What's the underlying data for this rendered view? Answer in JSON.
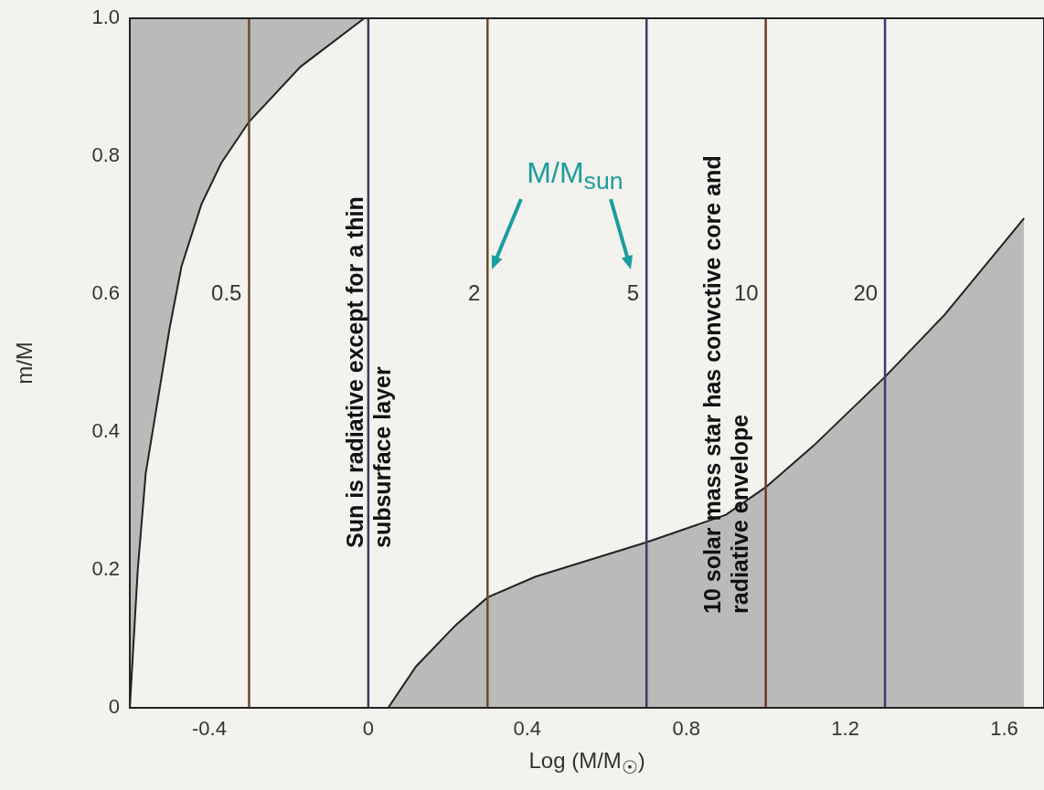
{
  "chart_data": {
    "type": "area",
    "xlabel": "Log (M/M$_{☉}$)",
    "ylabel": "m/M",
    "xlim": [
      -0.6,
      1.7
    ],
    "xticks": [
      -0.4,
      0,
      0.4,
      0.8,
      1.2,
      1.6
    ],
    "ylim": [
      0,
      1.0
    ],
    "yticks": [
      0,
      0.2,
      0.4,
      0.6,
      0.8,
      {
        "value": 1.0,
        "label": "1.0"
      }
    ],
    "grid": false,
    "legend": false,
    "series": [
      {
        "color": "#8c8c8c",
        "x": [
          -0.6,
          -0.6,
          -0.58,
          -0.56,
          -0.5,
          -0.47,
          -0.42,
          -0.37,
          -0.3,
          -0.17,
          -0.01
        ],
        "values": [
          1.0,
          0,
          0.2,
          0.34,
          0.55,
          0.64,
          0.73,
          0.79,
          0.85,
          0.93,
          1.0
        ]
      },
      {
        "color": "#8c8c8c",
        "x": [
          0.05,
          0.12,
          0.22,
          0.3,
          0.42,
          0.7,
          0.9,
          1.0,
          1.12,
          1.3,
          1.45,
          1.65
        ],
        "values": [
          0,
          0.06,
          0.12,
          0.16,
          0.19,
          0.24,
          0.28,
          0.32,
          0.38,
          0.48,
          0.57,
          0.71
        ]
      }
    ],
    "ref_lines": [
      {
        "axis": "x",
        "value": -0.3,
        "color": "#6b4a2a"
      },
      {
        "axis": "x",
        "value": 0,
        "color": "#3a3a5a"
      },
      {
        "axis": "x",
        "value": 0.3,
        "color": "#6b4a2a"
      },
      {
        "axis": "x",
        "value": 0.7,
        "color": "#3a3a6a"
      },
      {
        "axis": "x",
        "value": 1.0,
        "color": "#6b3a2a"
      },
      {
        "axis": "x",
        "value": 1.3,
        "color": "#3a3a7a"
      }
    ],
    "annotations": [
      "Sun is radiative except for a thin subsurface layer",
      "10 solar mass star has convctive core and radiative envelope",
      "M/M$_{sun}$",
      {
        "text": "0.5",
        "x": -0.3,
        "y": 0.6
      },
      {
        "text": "2",
        "x": 0.3,
        "y": 0.6
      },
      {
        "text": "5",
        "x": 0.7,
        "y": 0.6
      },
      {
        "text": "10",
        "x": 1.0,
        "y": 0.6
      },
      {
        "text": "20",
        "x": 1.3,
        "y": 0.6
      }
    ]
  }
}
